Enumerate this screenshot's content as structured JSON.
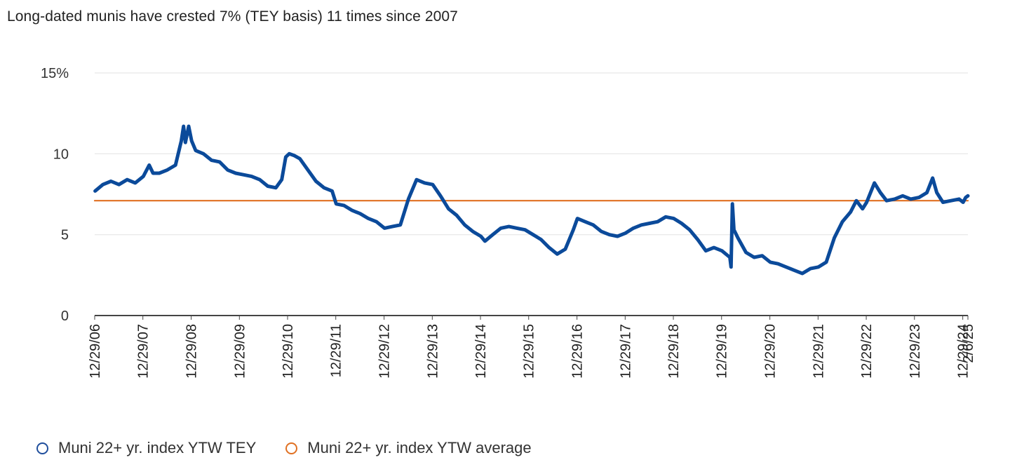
{
  "title": "Long-dated munis have crested 7% (TEY basis) 11 times since 2007",
  "colors": {
    "tey_line": "#0b4a9a",
    "average_line": "#e07022",
    "gridline": "#e6e6e6",
    "axis": "#444444"
  },
  "legend": [
    {
      "label": "Muni 22+ yr. index YTW TEY",
      "color": "#1f4e9c",
      "marker": "circle-outline"
    },
    {
      "label": "Muni 22+ yr. index YTW average",
      "color": "#e07022",
      "marker": "circle-outline"
    }
  ],
  "chart_data": {
    "type": "line",
    "title": "Long-dated munis have crested 7% (TEY basis) 11 times since 2007",
    "xlabel": "",
    "ylabel": "",
    "ylim": [
      0,
      15
    ],
    "y_ticks": [
      {
        "value": 15,
        "label": "15%"
      },
      {
        "value": 10,
        "label": "10"
      },
      {
        "value": 5,
        "label": "5"
      },
      {
        "value": 0,
        "label": "0"
      }
    ],
    "x_range": [
      "2006-12-29",
      "2025-02-06"
    ],
    "x_ticks": [
      {
        "date": "2006-12-29",
        "label": "12/29/06"
      },
      {
        "date": "2007-12-29",
        "label": "12/29/07"
      },
      {
        "date": "2008-12-29",
        "label": "12/29/08"
      },
      {
        "date": "2009-12-29",
        "label": "12/29/09"
      },
      {
        "date": "2010-12-29",
        "label": "12/29/10"
      },
      {
        "date": "2011-12-29",
        "label": "12/29/11"
      },
      {
        "date": "2012-12-29",
        "label": "12/29/12"
      },
      {
        "date": "2013-12-29",
        "label": "12/29/13"
      },
      {
        "date": "2014-12-29",
        "label": "12/29/14"
      },
      {
        "date": "2015-12-29",
        "label": "12/29/15"
      },
      {
        "date": "2016-12-29",
        "label": "12/29/16"
      },
      {
        "date": "2017-12-29",
        "label": "12/29/17"
      },
      {
        "date": "2018-12-29",
        "label": "12/29/18"
      },
      {
        "date": "2019-12-29",
        "label": "12/29/19"
      },
      {
        "date": "2020-12-29",
        "label": "12/29/20"
      },
      {
        "date": "2021-12-29",
        "label": "12/29/21"
      },
      {
        "date": "2022-12-29",
        "label": "12/29/22"
      },
      {
        "date": "2023-12-29",
        "label": "12/29/23"
      },
      {
        "date": "2024-12-29",
        "label": "12/29/24"
      },
      {
        "date": "2025-02-06",
        "label": "2/6/25"
      }
    ],
    "grid": true,
    "legend_position": "bottom-left",
    "series": [
      {
        "name": "Muni 22+ yr. index YTW TEY",
        "color": "#0b4a9a",
        "points": [
          [
            "2007-01-01",
            7.7
          ],
          [
            "2007-03-01",
            8.1
          ],
          [
            "2007-05-01",
            8.3
          ],
          [
            "2007-07-01",
            8.1
          ],
          [
            "2007-09-01",
            8.4
          ],
          [
            "2007-11-01",
            8.2
          ],
          [
            "2008-01-01",
            8.6
          ],
          [
            "2008-02-15",
            9.3
          ],
          [
            "2008-03-15",
            8.8
          ],
          [
            "2008-05-01",
            8.8
          ],
          [
            "2008-07-01",
            9.0
          ],
          [
            "2008-09-01",
            9.3
          ],
          [
            "2008-10-15",
            10.8
          ],
          [
            "2008-11-01",
            11.7
          ],
          [
            "2008-11-15",
            10.7
          ],
          [
            "2008-12-10",
            11.7
          ],
          [
            "2009-01-01",
            10.8
          ],
          [
            "2009-02-01",
            10.2
          ],
          [
            "2009-04-01",
            10.0
          ],
          [
            "2009-06-01",
            9.6
          ],
          [
            "2009-08-01",
            9.5
          ],
          [
            "2009-10-01",
            9.0
          ],
          [
            "2009-12-01",
            8.8
          ],
          [
            "2010-02-01",
            8.7
          ],
          [
            "2010-04-01",
            8.6
          ],
          [
            "2010-06-01",
            8.4
          ],
          [
            "2010-08-01",
            8.0
          ],
          [
            "2010-10-01",
            7.9
          ],
          [
            "2010-11-15",
            8.4
          ],
          [
            "2010-12-15",
            9.8
          ],
          [
            "2011-01-10",
            10.0
          ],
          [
            "2011-02-15",
            9.9
          ],
          [
            "2011-04-01",
            9.7
          ],
          [
            "2011-06-01",
            9.0
          ],
          [
            "2011-08-01",
            8.3
          ],
          [
            "2011-10-01",
            7.9
          ],
          [
            "2011-12-01",
            7.7
          ],
          [
            "2012-01-01",
            6.9
          ],
          [
            "2012-03-01",
            6.8
          ],
          [
            "2012-05-01",
            6.5
          ],
          [
            "2012-07-01",
            6.3
          ],
          [
            "2012-09-01",
            6.0
          ],
          [
            "2012-11-01",
            5.8
          ],
          [
            "2013-01-01",
            5.4
          ],
          [
            "2013-03-01",
            5.5
          ],
          [
            "2013-05-01",
            5.6
          ],
          [
            "2013-07-01",
            7.2
          ],
          [
            "2013-09-01",
            8.4
          ],
          [
            "2013-11-01",
            8.2
          ],
          [
            "2014-01-01",
            8.1
          ],
          [
            "2014-03-01",
            7.4
          ],
          [
            "2014-05-01",
            6.6
          ],
          [
            "2014-07-01",
            6.2
          ],
          [
            "2014-09-01",
            5.6
          ],
          [
            "2014-11-01",
            5.2
          ],
          [
            "2015-01-01",
            4.9
          ],
          [
            "2015-02-01",
            4.6
          ],
          [
            "2015-04-01",
            5.0
          ],
          [
            "2015-06-01",
            5.4
          ],
          [
            "2015-08-01",
            5.5
          ],
          [
            "2015-10-01",
            5.4
          ],
          [
            "2015-12-01",
            5.3
          ],
          [
            "2016-02-01",
            5.0
          ],
          [
            "2016-04-01",
            4.7
          ],
          [
            "2016-06-01",
            4.2
          ],
          [
            "2016-08-01",
            3.8
          ],
          [
            "2016-10-01",
            4.1
          ],
          [
            "2016-12-01",
            5.3
          ],
          [
            "2017-01-01",
            6.0
          ],
          [
            "2017-03-01",
            5.8
          ],
          [
            "2017-05-01",
            5.6
          ],
          [
            "2017-07-01",
            5.2
          ],
          [
            "2017-09-01",
            5.0
          ],
          [
            "2017-11-01",
            4.9
          ],
          [
            "2018-01-01",
            5.1
          ],
          [
            "2018-03-01",
            5.4
          ],
          [
            "2018-05-01",
            5.6
          ],
          [
            "2018-07-01",
            5.7
          ],
          [
            "2018-09-01",
            5.8
          ],
          [
            "2018-11-01",
            6.1
          ],
          [
            "2019-01-01",
            6.0
          ],
          [
            "2019-03-01",
            5.7
          ],
          [
            "2019-05-01",
            5.3
          ],
          [
            "2019-07-01",
            4.7
          ],
          [
            "2019-09-01",
            4.0
          ],
          [
            "2019-11-01",
            4.2
          ],
          [
            "2020-01-01",
            4.0
          ],
          [
            "2020-03-01",
            3.6
          ],
          [
            "2020-03-10",
            3.0
          ],
          [
            "2020-03-20",
            6.9
          ],
          [
            "2020-04-01",
            5.3
          ],
          [
            "2020-05-01",
            4.8
          ],
          [
            "2020-07-01",
            3.9
          ],
          [
            "2020-09-01",
            3.6
          ],
          [
            "2020-11-01",
            3.7
          ],
          [
            "2021-01-01",
            3.3
          ],
          [
            "2021-03-01",
            3.2
          ],
          [
            "2021-05-01",
            3.0
          ],
          [
            "2021-07-01",
            2.8
          ],
          [
            "2021-09-01",
            2.6
          ],
          [
            "2021-11-01",
            2.9
          ],
          [
            "2022-01-01",
            3.0
          ],
          [
            "2022-03-01",
            3.3
          ],
          [
            "2022-05-01",
            4.8
          ],
          [
            "2022-07-01",
            5.8
          ],
          [
            "2022-09-01",
            6.4
          ],
          [
            "2022-10-15",
            7.1
          ],
          [
            "2022-12-01",
            6.6
          ],
          [
            "2023-01-01",
            7.0
          ],
          [
            "2023-03-01",
            8.2
          ],
          [
            "2023-04-15",
            7.6
          ],
          [
            "2023-06-01",
            7.1
          ],
          [
            "2023-08-01",
            7.2
          ],
          [
            "2023-10-01",
            7.4
          ],
          [
            "2023-12-01",
            7.2
          ],
          [
            "2024-02-01",
            7.3
          ],
          [
            "2024-04-01",
            7.6
          ],
          [
            "2024-05-15",
            8.5
          ],
          [
            "2024-06-15",
            7.6
          ],
          [
            "2024-08-01",
            7.0
          ],
          [
            "2024-10-01",
            7.1
          ],
          [
            "2024-12-01",
            7.2
          ],
          [
            "2025-01-01",
            7.0
          ],
          [
            "2025-01-20",
            7.3
          ],
          [
            "2025-02-06",
            7.4
          ]
        ]
      },
      {
        "name": "Muni 22+ yr. index YTW average",
        "color": "#e07022",
        "points": [
          [
            "2006-12-29",
            7.1
          ],
          [
            "2025-02-06",
            7.1
          ]
        ]
      }
    ]
  }
}
